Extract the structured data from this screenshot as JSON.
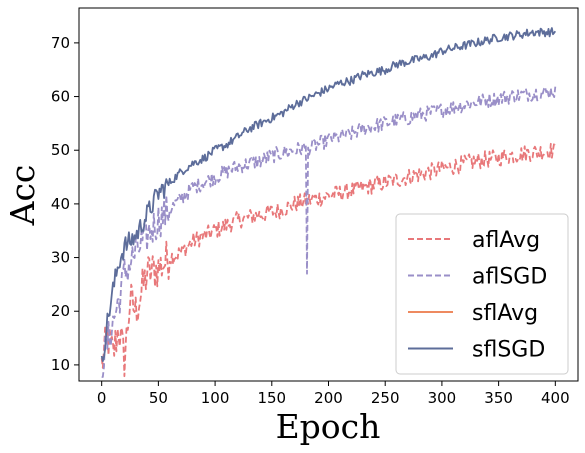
{
  "chart_data": {
    "type": "line",
    "title": "",
    "xlabel": "Epoch",
    "ylabel": "Acc",
    "xlim": [
      -20,
      420
    ],
    "ylim": [
      7,
      76.5
    ],
    "xticks": [
      0,
      50,
      100,
      150,
      200,
      250,
      300,
      350,
      400
    ],
    "yticks": [
      10,
      20,
      30,
      40,
      50,
      60,
      70
    ],
    "grid": false,
    "legend_position": "lower-right",
    "series": [
      {
        "name": "aflAvg",
        "color": "#e8787a",
        "dash": "dashed",
        "x": [
          0,
          5,
          10,
          15,
          20,
          25,
          30,
          40,
          50,
          60,
          70,
          80,
          90,
          100,
          110,
          120,
          130,
          140,
          150,
          160,
          170,
          180,
          190,
          200,
          210,
          220,
          230,
          240,
          250,
          260,
          270,
          280,
          290,
          300,
          310,
          320,
          330,
          340,
          350,
          360,
          370,
          380,
          390,
          400
        ],
        "y": [
          10,
          15,
          12,
          17,
          11,
          22,
          20,
          27,
          28,
          30,
          31,
          33,
          34,
          35,
          36,
          37,
          37.5,
          38,
          38.5,
          39,
          40,
          40.5,
          41,
          41.5,
          42,
          42.5,
          43,
          43.5,
          44,
          44.5,
          45,
          45.5,
          46,
          46.5,
          47,
          47.5,
          48,
          48.3,
          48.6,
          49,
          49.3,
          49.6,
          49.8,
          50
        ]
      },
      {
        "name": "aflSGD",
        "color": "#9a8fc8",
        "dash": "dashed",
        "x": [
          0,
          5,
          10,
          15,
          20,
          25,
          30,
          40,
          50,
          60,
          70,
          80,
          90,
          100,
          110,
          120,
          130,
          140,
          150,
          160,
          170,
          180,
          181,
          182,
          190,
          200,
          210,
          220,
          230,
          240,
          250,
          260,
          270,
          280,
          290,
          300,
          310,
          320,
          330,
          340,
          350,
          360,
          370,
          380,
          390,
          400
        ],
        "y": [
          10,
          14,
          18,
          22,
          27,
          29,
          31,
          34,
          37,
          39,
          41,
          43,
          44,
          45,
          46,
          47,
          47.5,
          48,
          49,
          49.5,
          50,
          50.5,
          27,
          50.5,
          51,
          52,
          52.5,
          53,
          54,
          54.5,
          55,
          55.5,
          56,
          56.5,
          57,
          57.5,
          58,
          58.5,
          59,
          59.3,
          59.6,
          60,
          60.3,
          60.6,
          60.8,
          61
        ]
      },
      {
        "name": "sflAvg",
        "color": "#ee8a60",
        "dash": "solid",
        "x": [],
        "y": []
      },
      {
        "name": "sflSGD",
        "color": "#5d6d9a",
        "dash": "solid",
        "x": [
          0,
          5,
          10,
          15,
          20,
          25,
          30,
          40,
          50,
          60,
          70,
          80,
          90,
          100,
          110,
          120,
          130,
          140,
          150,
          160,
          170,
          180,
          190,
          200,
          210,
          220,
          230,
          240,
          250,
          260,
          270,
          280,
          290,
          300,
          310,
          320,
          330,
          340,
          350,
          360,
          370,
          380,
          390,
          400
        ],
        "y": [
          10,
          18,
          24,
          29,
          32,
          33,
          34,
          38,
          42,
          44,
          46,
          47.5,
          48.5,
          50,
          51,
          52.5,
          54,
          55,
          56,
          57,
          58.5,
          59.5,
          60.5,
          61.5,
          62.5,
          63,
          64,
          64.5,
          65,
          66,
          66.5,
          67,
          67.5,
          68.5,
          69,
          69.5,
          70,
          70.5,
          71,
          71.3,
          71.6,
          72,
          72,
          72
        ]
      }
    ]
  }
}
